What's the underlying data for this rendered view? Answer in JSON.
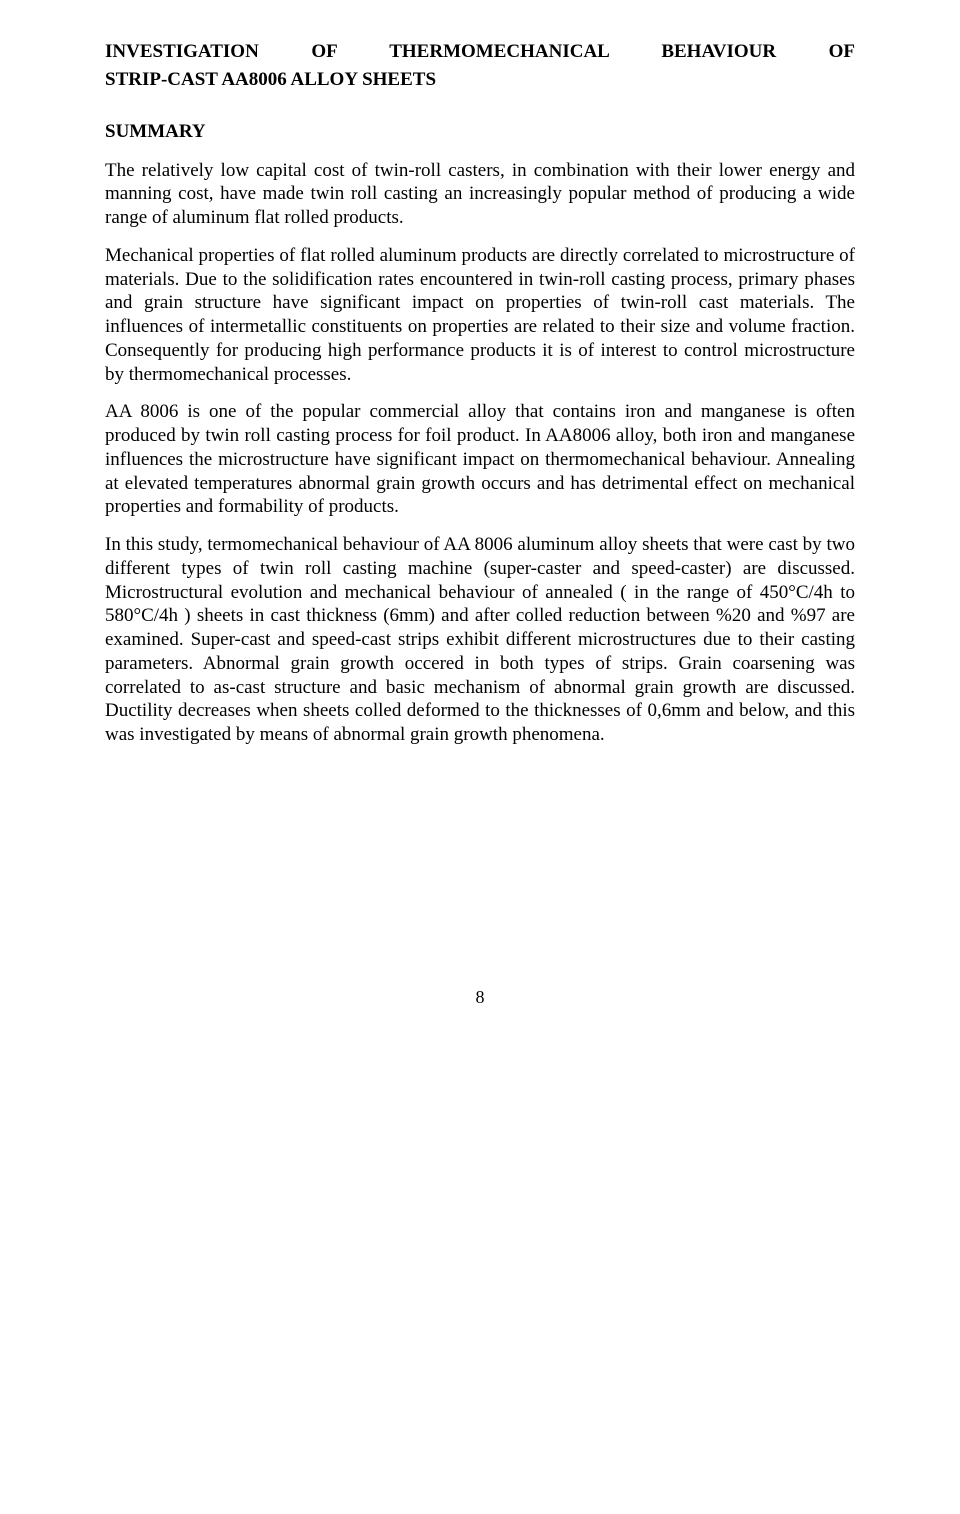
{
  "title_line1": "INVESTIGATION OF THERMOMECHANICAL BEHAVIOUR OF",
  "title_line2": "STRIP-CAST AA8006 ALLOY SHEETS",
  "summary_heading": "SUMMARY",
  "paragraphs": {
    "p1": "The relatively low capital cost of twin-roll casters, in combination with their lower energy and manning cost, have made twin roll casting an increasingly popular method of producing a wide range of aluminum flat rolled products.",
    "p2": "Mechanical properties of flat rolled aluminum products are directly correlated to microstructure of materials. Due to the solidification rates encountered in twin-roll casting process, primary phases and grain structure have significant impact on properties of twin-roll cast materials. The influences of intermetallic constituents on properties are related to their size and volume fraction. Consequently for producing high performance products it is of interest to control microstructure by thermomechanical processes.",
    "p3": "AA 8006 is one of the popular commercial alloy that contains iron and manganese is often produced by twin roll casting process for foil product. In AA8006 alloy, both iron and manganese influences the microstructure have significant impact on thermomechanical behaviour. Annealing at elevated temperatures abnormal grain growth occurs and has detrimental effect on mechanical properties and formability of products.",
    "p4": "In this study, termomechanical behaviour of AA 8006 aluminum alloy sheets that were cast by two different types of twin roll casting machine (super-caster and speed-caster) are discussed. Microstructural evolution and mechanical behaviour of annealed ( in the range of 450°C/4h to 580°C/4h ) sheets in cast thickness (6mm) and after colled reduction between %20 and %97 are examined. Super-cast and speed-cast strips exhibit different microstructures due to their casting parameters. Abnormal grain growth occered in both types of strips. Grain coarsening was correlated to as-cast structure and basic mechanism of abnormal grain growth are discussed. Ductility decreases when sheets colled deformed to the thicknesses of 0,6mm and below, and this was investigated by means of abnormal grain growth phenomena."
  },
  "page_number": "8"
}
